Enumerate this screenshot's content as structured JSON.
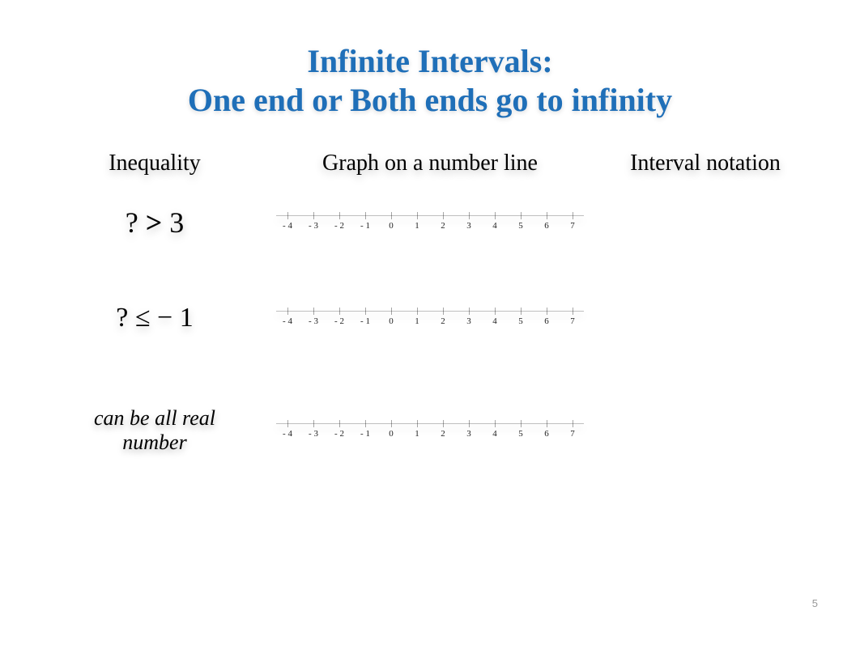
{
  "title": {
    "line1": "Infinite Intervals:",
    "line2": "One end or Both ends go to infinity"
  },
  "colors": {
    "title": "#1f6fb8",
    "text": "#000000",
    "background": "#ffffff",
    "tick": "rgba(0,0,0,0.35)",
    "line": "rgba(0,0,0,0.25)"
  },
  "headers": {
    "inequality": "Inequality",
    "graph": "Graph on a number line",
    "interval": "Interval notation"
  },
  "rows": [
    {
      "inequality_html": "? > 3",
      "style": "big"
    },
    {
      "inequality_html": "? ≤ − 1",
      "style": "big"
    },
    {
      "inequality_html": "can be all real\nnumber",
      "style": "italic"
    }
  ],
  "number_line": {
    "min": -4,
    "max": 7,
    "labels": [
      "- 4",
      "- 3",
      "- 2",
      "- 1",
      "0",
      "1",
      "2",
      "3",
      "4",
      "5",
      "6",
      "7"
    ]
  },
  "page_number": "5"
}
